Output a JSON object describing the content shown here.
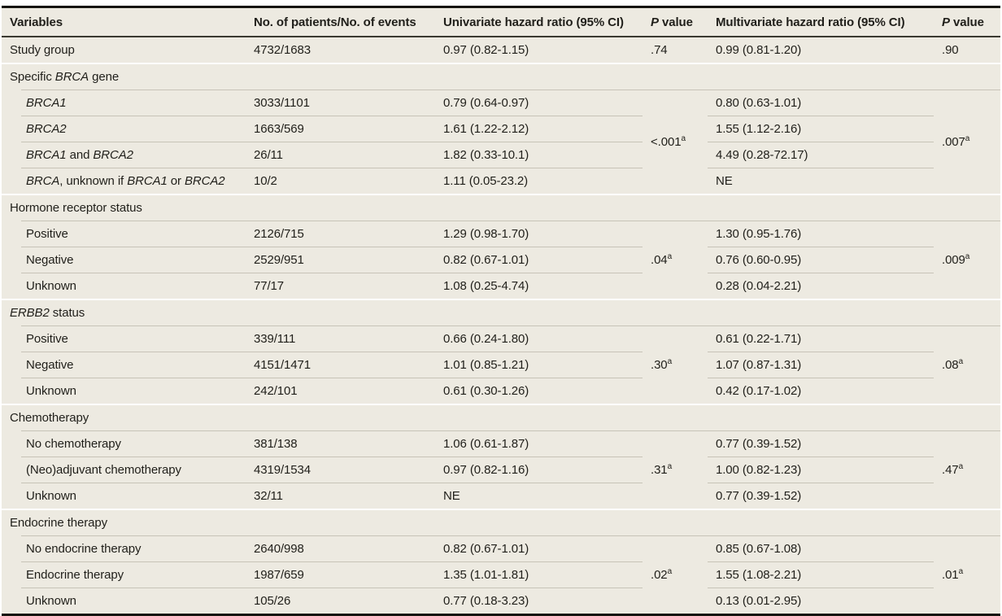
{
  "table": {
    "columns": [
      {
        "key": "variables",
        "segs": [
          "Variables"
        ]
      },
      {
        "key": "patients-events",
        "segs": [
          "No. of patients/No. of events"
        ]
      },
      {
        "key": "univariate-hr",
        "segs": [
          "Univariate hazard ratio (95% CI)"
        ]
      },
      {
        "key": "univariate-p",
        "segs": [
          {
            "i": "P"
          },
          " value"
        ]
      },
      {
        "key": "multivariate-hr",
        "segs": [
          "Multivariate hazard ratio (95% CI)"
        ]
      },
      {
        "key": "multivariate-p",
        "segs": [
          {
            "i": "P"
          },
          " value"
        ]
      }
    ],
    "sections": [
      {
        "rows": [
          {
            "label": [
              "Study group"
            ],
            "patients": "4732/1683",
            "uni_hr": "0.97 (0.82-1.15)",
            "uni_p": [
              ".74"
            ],
            "multi_hr": "0.99 (0.81-1.20)",
            "multi_p": [
              ".90"
            ]
          }
        ]
      },
      {
        "header": [
          "Specific ",
          {
            "i": "BRCA"
          },
          " gene"
        ],
        "uni_p": [
          "<.001",
          {
            "sup": "a"
          }
        ],
        "multi_p": [
          ".007",
          {
            "sup": "a"
          }
        ],
        "rows": [
          {
            "label": [
              {
                "i": "BRCA1"
              }
            ],
            "patients": "3033/1101",
            "uni_hr": "0.79 (0.64-0.97)",
            "multi_hr": "0.80 (0.63-1.01)"
          },
          {
            "label": [
              {
                "i": "BRCA2"
              }
            ],
            "patients": "1663/569",
            "uni_hr": "1.61 (1.22-2.12)",
            "multi_hr": "1.55 (1.12-2.16)"
          },
          {
            "label": [
              {
                "i": "BRCA1"
              },
              " and ",
              {
                "i": "BRCA2"
              }
            ],
            "patients": "26/11",
            "uni_hr": "1.82 (0.33-10.1)",
            "multi_hr": "4.49 (0.28-72.17)"
          },
          {
            "label": [
              {
                "i": "BRCA"
              },
              ", unknown if ",
              {
                "i": "BRCA1"
              },
              " or ",
              {
                "i": "BRCA2"
              }
            ],
            "patients": "10/2",
            "uni_hr": "1.11 (0.05-23.2)",
            "multi_hr": "NE"
          }
        ]
      },
      {
        "header": [
          "Hormone receptor status"
        ],
        "uni_p": [
          ".04",
          {
            "sup": "a"
          }
        ],
        "multi_p": [
          ".009",
          {
            "sup": "a"
          }
        ],
        "rows": [
          {
            "label": [
              "Positive"
            ],
            "patients": "2126/715",
            "uni_hr": "1.29 (0.98-1.70)",
            "multi_hr": "1.30 (0.95-1.76)"
          },
          {
            "label": [
              "Negative"
            ],
            "patients": "2529/951",
            "uni_hr": "0.82 (0.67-1.01)",
            "multi_hr": "0.76 (0.60-0.95)"
          },
          {
            "label": [
              "Unknown"
            ],
            "patients": "77/17",
            "uni_hr": "1.08 (0.25-4.74)",
            "multi_hr": "0.28 (0.04-2.21)"
          }
        ]
      },
      {
        "header": [
          {
            "i": "ERBB2"
          },
          " status"
        ],
        "uni_p": [
          ".30",
          {
            "sup": "a"
          }
        ],
        "multi_p": [
          ".08",
          {
            "sup": "a"
          }
        ],
        "rows": [
          {
            "label": [
              "Positive"
            ],
            "patients": "339/111",
            "uni_hr": "0.66 (0.24-1.80)",
            "multi_hr": "0.61 (0.22-1.71)"
          },
          {
            "label": [
              "Negative"
            ],
            "patients": "4151/1471",
            "uni_hr": "1.01 (0.85-1.21)",
            "multi_hr": "1.07 (0.87-1.31)"
          },
          {
            "label": [
              "Unknown"
            ],
            "patients": "242/101",
            "uni_hr": "0.61 (0.30-1.26)",
            "multi_hr": "0.42 (0.17-1.02)"
          }
        ]
      },
      {
        "header": [
          "Chemotherapy"
        ],
        "uni_p": [
          ".31",
          {
            "sup": "a"
          }
        ],
        "multi_p": [
          ".47",
          {
            "sup": "a"
          }
        ],
        "rows": [
          {
            "label": [
              "No chemotherapy"
            ],
            "patients": "381/138",
            "uni_hr": "1.06 (0.61-1.87)",
            "multi_hr": "0.77 (0.39-1.52)"
          },
          {
            "label": [
              "(Neo)adjuvant chemotherapy"
            ],
            "patients": "4319/1534",
            "uni_hr": "0.97 (0.82-1.16)",
            "multi_hr": "1.00 (0.82-1.23)"
          },
          {
            "label": [
              "Unknown"
            ],
            "patients": "32/11",
            "uni_hr": "NE",
            "multi_hr": "0.77 (0.39-1.52)"
          }
        ]
      },
      {
        "header": [
          "Endocrine therapy"
        ],
        "uni_p": [
          ".02",
          {
            "sup": "a"
          }
        ],
        "multi_p": [
          ".01",
          {
            "sup": "a"
          }
        ],
        "rows": [
          {
            "label": [
              "No endocrine therapy"
            ],
            "patients": "2640/998",
            "uni_hr": "0.82 (0.67-1.01)",
            "multi_hr": "0.85 (0.67-1.08)"
          },
          {
            "label": [
              "Endocrine therapy"
            ],
            "patients": "1987/659",
            "uni_hr": "1.35 (1.01-1.81)",
            "multi_hr": "1.55 (1.08-2.21)"
          },
          {
            "label": [
              "Unknown"
            ],
            "patients": "105/26",
            "uni_hr": "0.77 (0.18-3.23)",
            "multi_hr": "0.13 (0.01-2.95)"
          }
        ]
      }
    ],
    "colors": {
      "table_background": "#edeae1",
      "row_divider": "#c7c3b7",
      "heavy_rule": "#16150e",
      "header_rule": "#3b3a31",
      "section_separator": "#ffffff",
      "text": "#201f1a"
    }
  }
}
